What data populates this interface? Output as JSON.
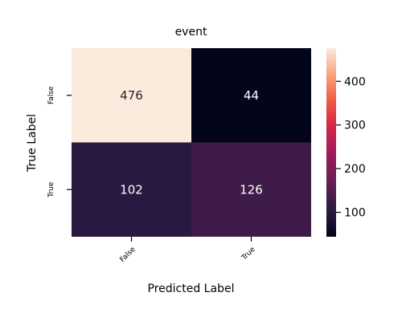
{
  "chart_data": {
    "type": "heatmap",
    "title": "event",
    "xlabel": "Predicted Label",
    "ylabel": "True Label",
    "x_categories": [
      "False",
      "True"
    ],
    "y_categories": [
      "False",
      "True"
    ],
    "values": [
      [
        476,
        44
      ],
      [
        102,
        126
      ]
    ],
    "colorbar": {
      "ticks": [
        100,
        200,
        300,
        400
      ],
      "range": [
        44,
        476
      ],
      "colormap": "rocket"
    },
    "grid": false
  }
}
